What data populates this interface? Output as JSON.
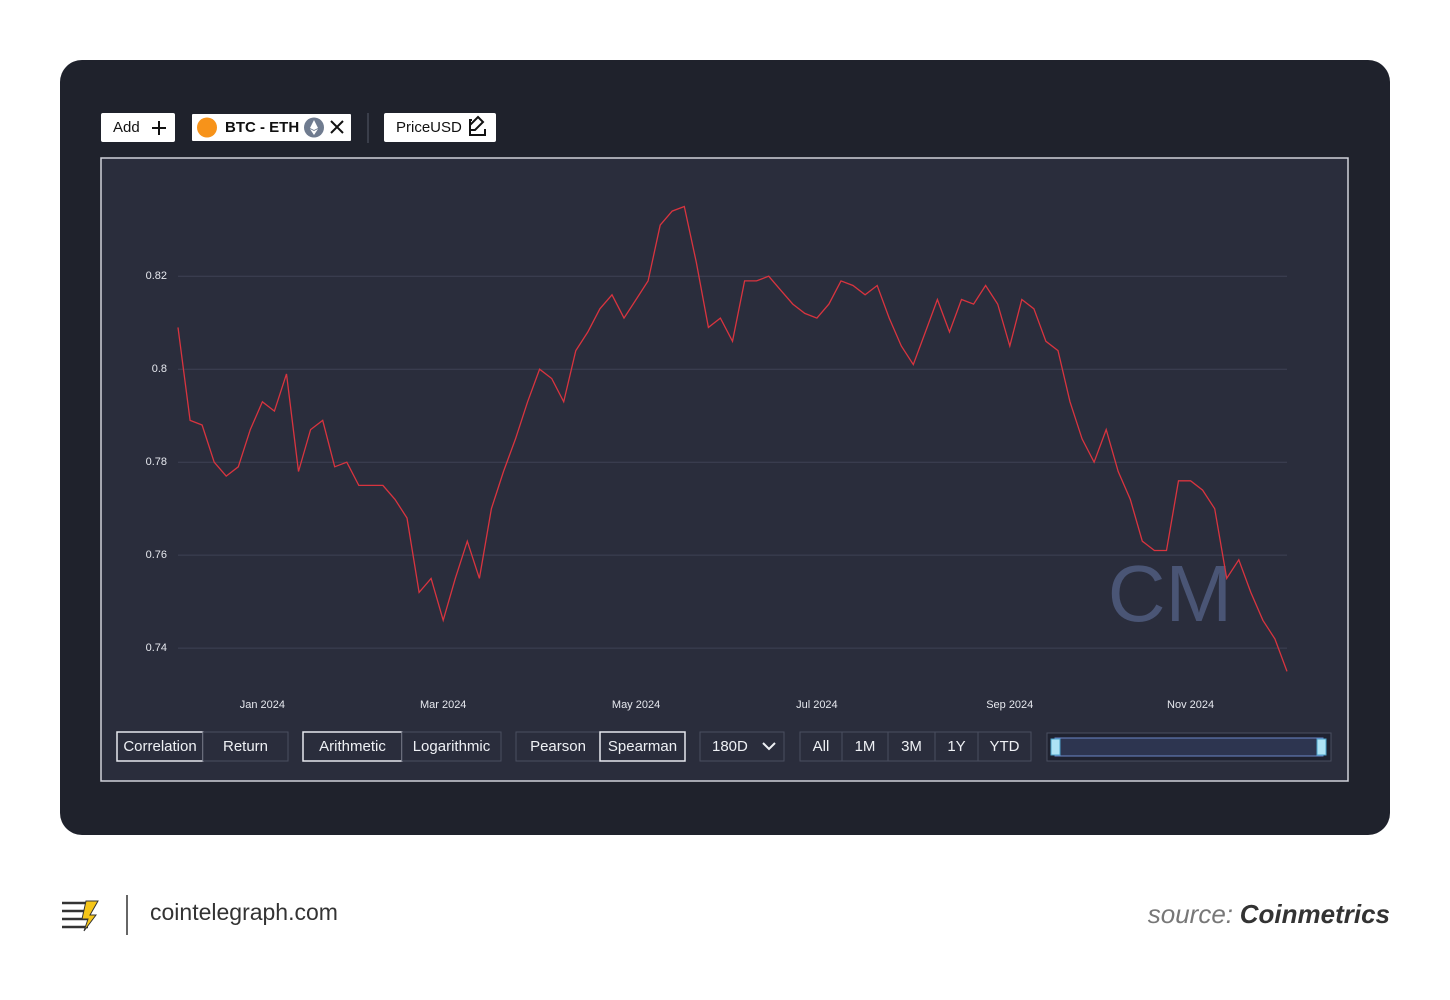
{
  "chart_data": {
    "type": "line",
    "categories": [
      null,
      null,
      null,
      null,
      null,
      null,
      null,
      "Jan 2024",
      null,
      null,
      null,
      null,
      null,
      null,
      null,
      null,
      null,
      null,
      null,
      null,
      null,
      null,
      "Mar 2024",
      null,
      null,
      null,
      null,
      null,
      null,
      null,
      null,
      null,
      null,
      null,
      null,
      null,
      null,
      null,
      "May 2024",
      null,
      null,
      null,
      null,
      null,
      null,
      null,
      null,
      null,
      null,
      null,
      null,
      null,
      null,
      "Jul 2024",
      null,
      null,
      null,
      null,
      null,
      null,
      null,
      null,
      null,
      null,
      null,
      null,
      null,
      null,
      null,
      "Sep 2024",
      null,
      null,
      null,
      null,
      null,
      null,
      null,
      null,
      null,
      null,
      null,
      null,
      null,
      null,
      "Nov 2024",
      null,
      null,
      null,
      null,
      null,
      null,
      null,
      null
    ],
    "series": [
      {
        "color": "#d8343f",
        "values": [
          0.809,
          0.789,
          0.788,
          0.78,
          0.777,
          0.779,
          0.787,
          0.793,
          0.791,
          0.799,
          0.778,
          0.787,
          0.789,
          0.779,
          0.78,
          0.775,
          0.775,
          0.775,
          0.772,
          0.768,
          0.752,
          0.755,
          0.746,
          0.755,
          0.763,
          0.755,
          0.77,
          0.778,
          0.785,
          0.793,
          0.8,
          0.798,
          0.793,
          0.804,
          0.808,
          0.813,
          0.816,
          0.811,
          0.815,
          0.819,
          0.831,
          0.834,
          0.835,
          0.823,
          0.809,
          0.811,
          0.806,
          0.819,
          0.819,
          0.82,
          0.817,
          0.814,
          0.812,
          0.811,
          0.814,
          0.819,
          0.818,
          0.816,
          0.818,
          0.811,
          0.805,
          0.801,
          0.808,
          0.815,
          0.808,
          0.815,
          0.814,
          0.818,
          0.814,
          0.805,
          0.815,
          0.813,
          0.806,
          0.804,
          0.793,
          0.785,
          0.78,
          0.787,
          0.778,
          0.772,
          0.763,
          0.761,
          0.761,
          0.776,
          0.776,
          0.774,
          0.77,
          0.755,
          0.759,
          0.752,
          0.746,
          0.742,
          0.735
        ]
      }
    ],
    "ylim": [
      0.731,
      0.845
    ],
    "yticks": [
      0.74,
      0.76,
      0.78,
      0.8,
      0.82
    ],
    "grid": true
  },
  "ui": {
    "add": "Add",
    "pair": "BTC - ETH",
    "metric": "PriceUSD",
    "groups": [
      [
        "Correlation",
        "Return"
      ],
      [
        "Arithmetic",
        "Logarithmic"
      ],
      [
        "Pearson",
        "Spearman"
      ]
    ],
    "window": "180D",
    "ranges": [
      "All",
      "1M",
      "3M",
      "1Y",
      "YTD"
    ],
    "watermark": "CM",
    "site": "cointelegraph.com",
    "source_label": "source:",
    "source": "Coinmetrics"
  }
}
